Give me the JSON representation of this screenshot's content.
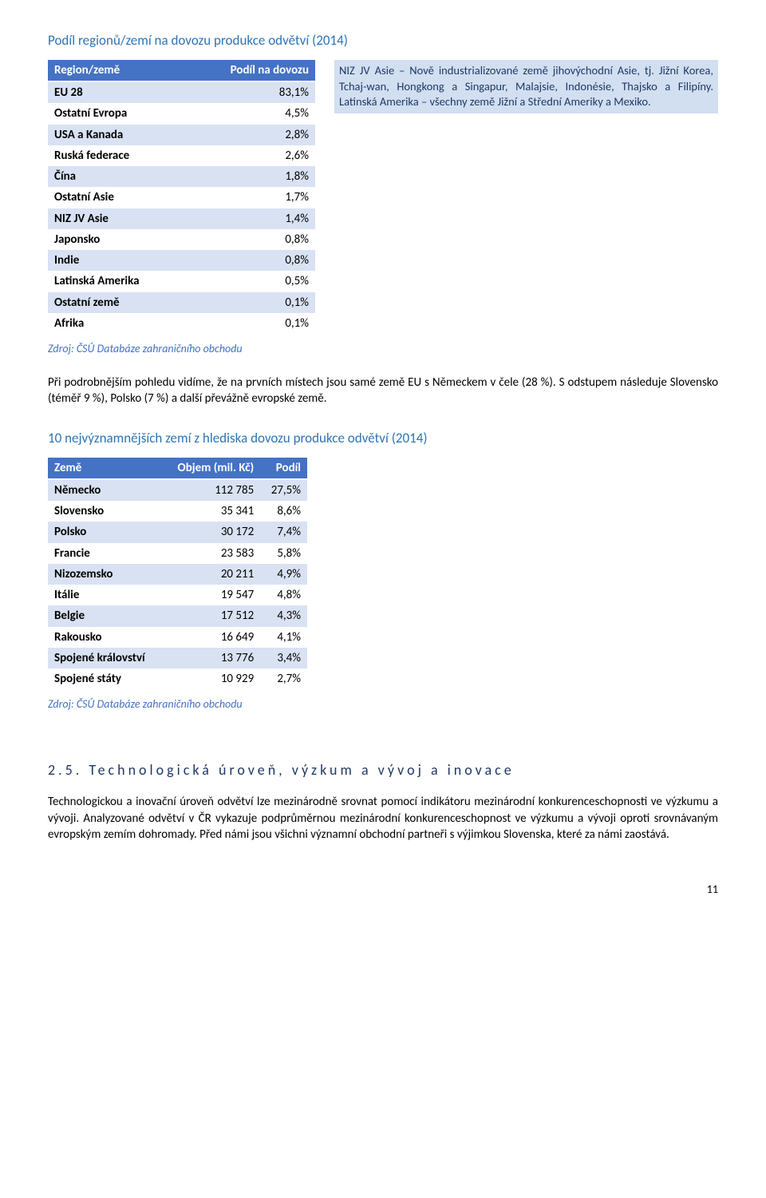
{
  "heading1": "Podíl regionů/zemí na dovozu produkce odvětví (2014)",
  "table1": {
    "headers": [
      "Region/země",
      "Podíl na dovozu"
    ],
    "rows": [
      [
        "EU 28",
        "83,1%"
      ],
      [
        "Ostatní Evropa",
        "4,5%"
      ],
      [
        "USA a Kanada",
        "2,8%"
      ],
      [
        "Ruská federace",
        "2,6%"
      ],
      [
        "Čína",
        "1,8%"
      ],
      [
        "Ostatní Asie",
        "1,7%"
      ],
      [
        "NIZ JV Asie",
        "1,4%"
      ],
      [
        "Japonsko",
        "0,8%"
      ],
      [
        "Indie",
        "0,8%"
      ],
      [
        "Latinská Amerika",
        "0,5%"
      ],
      [
        "Ostatní země",
        "0,1%"
      ],
      [
        "Afrika",
        "0,1%"
      ]
    ]
  },
  "note_box": "NIZ JV Asie – Nově industrializované země jihovýchodní Asie, tj. Jižní Korea, Tchaj-wan, Hongkong a Singapur, Malajsie, Indonésie, Thajsko a Filipíny. Latinská Amerika – všechny země Jižní a Střední Ameriky a Mexiko.",
  "source": "Zdroj: ČSÚ Databáze zahraničního obchodu",
  "para1": "Při podrobnějším pohledu vidíme, že na prvních místech jsou samé země EU s Německem v čele (28 %). S odstupem následuje Slovensko (téměř 9 %), Polsko (7 %) a další převážně evropské země.",
  "heading2": "10 nejvýznamnějších zemí z hlediska dovozu produkce odvětví (2014)",
  "table2": {
    "headers": [
      "Země",
      "Objem (mil. Kč)",
      "Podíl"
    ],
    "rows": [
      [
        "Německo",
        "112 785",
        "27,5%"
      ],
      [
        "Slovensko",
        "35 341",
        "8,6%"
      ],
      [
        "Polsko",
        "30 172",
        "7,4%"
      ],
      [
        "Francie",
        "23 583",
        "5,8%"
      ],
      [
        "Nizozemsko",
        "20 211",
        "4,9%"
      ],
      [
        "Itálie",
        "19 547",
        "4,8%"
      ],
      [
        "Belgie",
        "17 512",
        "4,3%"
      ],
      [
        "Rakousko",
        "16 649",
        "4,1%"
      ],
      [
        "Spojené království",
        "13 776",
        "3,4%"
      ],
      [
        "Spojené státy",
        "10 929",
        "2,7%"
      ]
    ]
  },
  "section_heading": "2.5. Technologická úroveň, výzkum a vývoj a inovace",
  "para2": "Technologickou a inovační úroveň odvětví lze mezinárodně srovnat pomocí indikátoru mezinárodní konkurenceschopnosti ve výzkumu a vývoji. Analyzované odvětví v ČR vykazuje podprůměrnou mezinárodní konkurenceschopnost ve výzkumu a vývoji oproti srovnávaným evropským zemím dohromady. Před námi jsou všichni významní obchodní partneři s výjimkou Slovenska, které za námi zaostává.",
  "page_num": "11"
}
